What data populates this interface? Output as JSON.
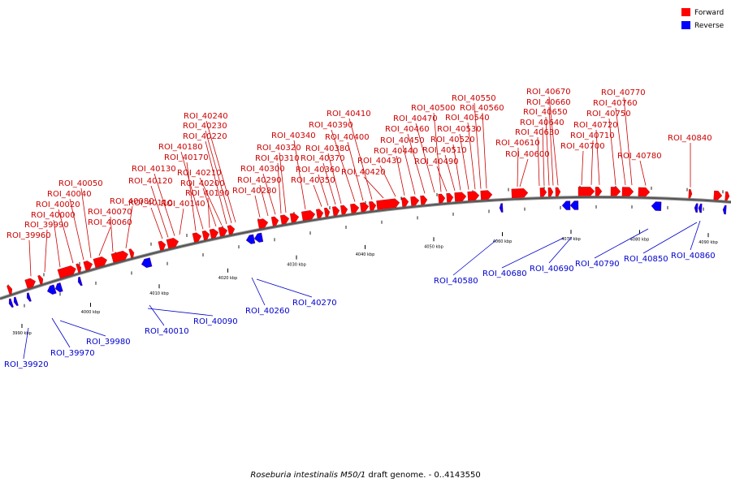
{
  "legend": {
    "forward_label": "Forward",
    "reverse_label": "Reverse",
    "forward_color": "#ff0000",
    "reverse_color": "#0000ff"
  },
  "caption": {
    "organism": "Roseburia intestinalis M50/1",
    "rest": " draft genome. - 0..4143550"
  },
  "axis": {
    "ticks": [
      {
        "value": 3990,
        "label": "3990 kbp"
      },
      {
        "value": 4000,
        "label": "4000 kbp"
      },
      {
        "value": 4010,
        "label": "4010 kbp"
      },
      {
        "value": 4020,
        "label": "4020 kbp"
      },
      {
        "value": 4030,
        "label": "4030 kbp"
      },
      {
        "value": 4040,
        "label": "4040 kbp"
      },
      {
        "value": 4050,
        "label": "4050 kbp"
      },
      {
        "value": 4060,
        "label": "4060 kbp"
      },
      {
        "value": 4070,
        "label": "4070 kbp"
      },
      {
        "value": 4080,
        "label": "4080 kbp"
      },
      {
        "value": 4090,
        "label": "4090 kbp"
      }
    ]
  },
  "forward_labels": [
    "ROI_39960",
    "ROI_39990",
    "ROI_40000",
    "ROI_40020",
    "ROI_40040",
    "ROI_40050",
    "ROI_40060",
    "ROI_40070",
    "ROI_40080",
    "ROI_40110",
    "ROI_40120",
    "ROI_40130",
    "ROI_40140",
    "ROI_40170",
    "ROI_40180",
    "ROI_40190",
    "ROI_40200",
    "ROI_40210",
    "ROI_40220",
    "ROI_40230",
    "ROI_40240",
    "ROI_40280",
    "ROI_40290",
    "ROI_40300",
    "ROI_40310",
    "ROI_40320",
    "ROI_40340",
    "ROI_40350",
    "ROI_40360",
    "ROI_40370",
    "ROI_40380",
    "ROI_40390",
    "ROI_40400",
    "ROI_40410",
    "ROI_40420",
    "ROI_40430",
    "ROI_40440",
    "ROI_40450",
    "ROI_40460",
    "ROI_40470",
    "ROI_40490",
    "ROI_40500",
    "ROI_40510",
    "ROI_40520",
    "ROI_40530",
    "ROI_40540",
    "ROI_40550",
    "ROI_40560",
    "ROI_40600",
    "ROI_40610",
    "ROI_40630",
    "ROI_40640",
    "ROI_40650",
    "ROI_40660",
    "ROI_40670",
    "ROI_40700",
    "ROI_40710",
    "ROI_40720",
    "ROI_40750",
    "ROI_40760",
    "ROI_40770",
    "ROI_40780",
    "ROI_40840"
  ],
  "reverse_labels": [
    "ROI_39920",
    "ROI_39970",
    "ROI_39980",
    "ROI_40010",
    "ROI_40090",
    "ROI_40260",
    "ROI_40270",
    "ROI_40580",
    "ROI_40680",
    "ROI_40690",
    "ROI_40790",
    "ROI_40850",
    "ROI_40860"
  ]
}
